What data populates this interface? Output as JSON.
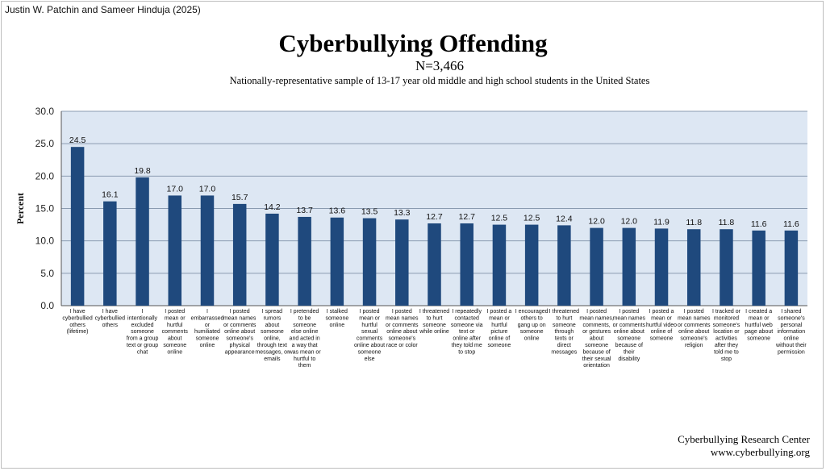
{
  "header": {
    "authors": "Justin W. Patchin and Sameer Hinduja (2025)"
  },
  "footer": {
    "org": "Cyberbullying Research Center",
    "url": "www.cyberbullying.org"
  },
  "colors": {
    "bar": "#1f497d",
    "plot_bg": "#dde7f3",
    "grid": "#8a9bb0"
  },
  "chart_data": {
    "type": "bar",
    "title": "Cyberbullying Offending",
    "subtitle": "N=3,466",
    "description": "Nationally-representative sample of 13-17 year old middle and high school students in the United States",
    "xlabel": "",
    "ylabel": "Percent",
    "ylim": [
      0,
      30
    ],
    "yticks": [
      "0.0",
      "5.0",
      "10.0",
      "15.0",
      "20.0",
      "25.0",
      "30.0"
    ],
    "grid": true,
    "categories": [
      [
        "I have",
        "cyberbullied",
        "others",
        "(lifetime)"
      ],
      [
        "I have",
        "cyberbullied",
        "others"
      ],
      [
        "I",
        "intentionally",
        "excluded",
        "someone",
        "from a group",
        "text or group",
        "chat"
      ],
      [
        "I posted",
        "mean or",
        "hurtful",
        "comments",
        "about",
        "someone",
        "online"
      ],
      [
        "I",
        "embarrassed",
        "or",
        "humiliated",
        "someone",
        "online"
      ],
      [
        "I posted",
        "mean names",
        "or comments",
        "online about",
        "someone's",
        "physical",
        "appearance"
      ],
      [
        "I spread",
        "rumors",
        "about",
        "someone",
        "online,",
        "through text",
        "messages, or",
        "emails"
      ],
      [
        "I pretended",
        "to be",
        "someone",
        "else online",
        "and acted in",
        "a way that",
        "was mean or",
        "hurtful to",
        "them"
      ],
      [
        "I stalked",
        "someone",
        "online"
      ],
      [
        "I posted",
        "mean or",
        "hurtful",
        "sexual",
        "comments",
        "online about",
        "someone",
        "else"
      ],
      [
        "I posted",
        "mean names",
        "or comments",
        "online about",
        "someone's",
        "race or color"
      ],
      [
        "I threatened",
        "to hurt",
        "someone",
        "while online"
      ],
      [
        "I repeatedly",
        "contacted",
        "someone via",
        "text or",
        "online after",
        "they told me",
        "to stop"
      ],
      [
        "I posted a",
        "mean or",
        "hurtful",
        "picture",
        "online of",
        "someone"
      ],
      [
        "I encouraged",
        "others to",
        "gang up on",
        "someone",
        "online"
      ],
      [
        "I threatened",
        "to hurt",
        "someone",
        "through",
        "texts or",
        "direct",
        "messages"
      ],
      [
        "I posted",
        "mean names,",
        "comments,",
        "or gestures",
        "about",
        "someone",
        "because of",
        "their sexual",
        "orientation"
      ],
      [
        "I posted",
        "mean names",
        "or comments",
        "online about",
        "someone",
        "because of",
        "their",
        "disability"
      ],
      [
        "I posted a",
        "mean or",
        "hurtful video",
        "online of",
        "someone"
      ],
      [
        "I posted",
        "mean names",
        "or comments",
        "online about",
        "someone's",
        "religion"
      ],
      [
        "I tracked or",
        "monitored",
        "someone's",
        "location or",
        "activities",
        "after they",
        "told me to",
        "stop"
      ],
      [
        "I created a",
        "mean or",
        "hurtful web",
        "page about",
        "someone"
      ],
      [
        "I shared",
        "someone's",
        "personal",
        "information",
        "online",
        "without their",
        "permission"
      ]
    ],
    "values": [
      24.5,
      16.1,
      19.8,
      17.0,
      17.0,
      15.7,
      14.2,
      13.7,
      13.6,
      13.5,
      13.3,
      12.7,
      12.7,
      12.5,
      12.5,
      12.4,
      12.0,
      12.0,
      11.9,
      11.8,
      11.8,
      11.6,
      11.6
    ],
    "value_labels": [
      "24.5",
      "16.1",
      "19.8",
      "17.0",
      "17.0",
      "15.7",
      "14.2",
      "13.7",
      "13.6",
      "13.5",
      "13.3",
      "12.7",
      "12.7",
      "12.5",
      "12.5",
      "12.4",
      "12.0",
      "12.0",
      "11.9",
      "11.8",
      "11.8",
      "11.6",
      "11.6"
    ]
  }
}
